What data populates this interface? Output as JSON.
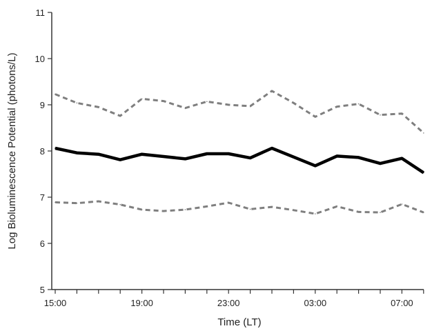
{
  "chart_data": {
    "type": "line",
    "xlabel": "Time (LT)",
    "ylabel": "Log Bioluminescence Potential  (photons/L)",
    "ylim": [
      5,
      11
    ],
    "yticks": [
      5,
      6,
      7,
      8,
      9,
      10,
      11
    ],
    "xticks": [
      "15:00",
      "19:00",
      "23:00",
      "03:00",
      "07:00"
    ],
    "x": [
      "15:00",
      "16:00",
      "17:00",
      "18:00",
      "19:00",
      "20:00",
      "21:00",
      "22:00",
      "23:00",
      "00:00",
      "01:00",
      "02:00",
      "03:00",
      "04:00",
      "05:00",
      "06:00",
      "07:00",
      "08:00"
    ],
    "grid": false,
    "series": [
      {
        "style": "dashed",
        "color": "#7f7f7f",
        "values": [
          9.23,
          9.04,
          8.95,
          8.76,
          9.13,
          9.08,
          8.93,
          9.07,
          9.0,
          8.97,
          9.3,
          9.04,
          8.74,
          8.96,
          9.02,
          8.78,
          8.81,
          8.39
        ]
      },
      {
        "style": "solid",
        "color": "#000000",
        "values": [
          8.06,
          7.96,
          7.93,
          7.81,
          7.93,
          7.88,
          7.83,
          7.94,
          7.94,
          7.85,
          8.06,
          7.87,
          7.68,
          7.89,
          7.86,
          7.73,
          7.84,
          7.53
        ]
      },
      {
        "style": "dashed",
        "color": "#7f7f7f",
        "values": [
          6.89,
          6.87,
          6.91,
          6.84,
          6.73,
          6.7,
          6.73,
          6.8,
          6.88,
          6.74,
          6.79,
          6.72,
          6.64,
          6.8,
          6.68,
          6.67,
          6.85,
          6.67
        ]
      }
    ]
  }
}
